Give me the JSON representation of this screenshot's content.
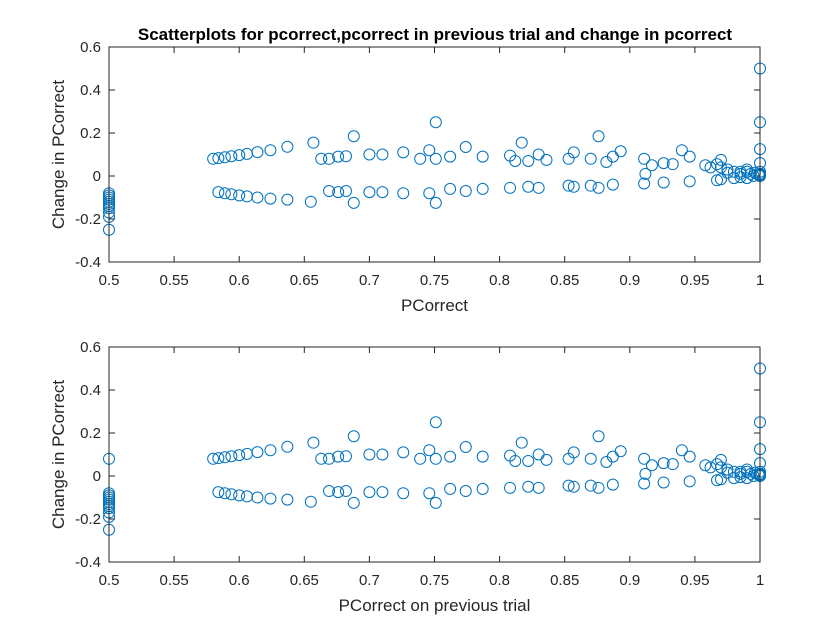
{
  "title": "Scatterplots for pcorrect,pcorrect in previous trial and change in pcorrect",
  "marker_color": "#0072BD",
  "chart_data": [
    {
      "type": "scatter",
      "xlabel": "PCorrect",
      "ylabel": "Change in PCorrect",
      "xlim": [
        0.5,
        1
      ],
      "ylim": [
        -0.4,
        0.6
      ],
      "xticks": [
        "0.5",
        "0.55",
        "0.6",
        "0.65",
        "0.7",
        "0.75",
        "0.8",
        "0.85",
        "0.9",
        "0.95",
        "1"
      ],
      "yticks": [
        "-0.4",
        "-0.2",
        "0",
        "0.2",
        "0.4",
        "0.6"
      ],
      "grid": false,
      "x": [
        0.5,
        0.5,
        0.5,
        0.5,
        0.5,
        0.5,
        0.5,
        0.5,
        0.5,
        0.5,
        0.5,
        0.58,
        0.584,
        0.589,
        0.594,
        0.6,
        0.606,
        0.614,
        0.624,
        0.637,
        0.584,
        0.589,
        0.594,
        0.6,
        0.606,
        0.614,
        0.624,
        0.637,
        0.657,
        0.663,
        0.669,
        0.676,
        0.682,
        0.688,
        0.7,
        0.71,
        0.726,
        0.739,
        0.746,
        0.751,
        0.762,
        0.774,
        0.787,
        0.808,
        0.812,
        0.817,
        0.822,
        0.83,
        0.836,
        0.853,
        0.857,
        0.87,
        0.876,
        0.882,
        0.887,
        0.893,
        0.911,
        0.917,
        0.926,
        0.933,
        0.94,
        0.946,
        0.958,
        0.962,
        0.967,
        0.97,
        0.975,
        0.985,
        0.99,
        1,
        1,
        1,
        1,
        0.655,
        0.669,
        0.676,
        0.682,
        0.688,
        0.7,
        0.71,
        0.726,
        0.746,
        0.751,
        0.762,
        0.774,
        0.787,
        0.808,
        0.822,
        0.83,
        0.853,
        0.857,
        0.87,
        0.876,
        0.887,
        0.911,
        0.926,
        0.946,
        0.967,
        0.97,
        0.98,
        0.985,
        0.99,
        0.995,
        1,
        1,
        0.97,
        0.975,
        0.98,
        0.985,
        0.99,
        0.993,
        0.996,
        0.999,
        1,
        1,
        1,
        0.912,
        0.751
      ],
      "y": [
        -0.08,
        -0.09,
        -0.1,
        -0.11,
        -0.12,
        -0.13,
        -0.14,
        -0.15,
        -0.17,
        -0.19,
        -0.25,
        0.08,
        0.083,
        0.087,
        0.092,
        0.097,
        0.103,
        0.111,
        0.12,
        0.136,
        -0.075,
        -0.08,
        -0.085,
        -0.09,
        -0.095,
        -0.1,
        -0.105,
        -0.11,
        0.155,
        0.08,
        0.08,
        0.09,
        0.092,
        0.185,
        0.1,
        0.1,
        0.11,
        0.08,
        0.12,
        0.25,
        0.09,
        0.135,
        0.09,
        0.095,
        0.07,
        0.155,
        0.07,
        0.1,
        0.075,
        0.08,
        0.11,
        0.08,
        0.185,
        0.065,
        0.09,
        0.115,
        0.08,
        0.05,
        0.06,
        0.055,
        0.12,
        0.09,
        0.05,
        0.04,
        0.055,
        0.075,
        0.03,
        0.02,
        0.03,
        0.5,
        0.25,
        0.125,
        0.06,
        -0.12,
        -0.07,
        -0.075,
        -0.07,
        -0.125,
        -0.075,
        -0.075,
        -0.08,
        -0.08,
        -0.125,
        -0.06,
        -0.07,
        -0.06,
        -0.055,
        -0.05,
        -0.055,
        -0.045,
        -0.05,
        -0.045,
        -0.055,
        -0.04,
        -0.035,
        -0.03,
        -0.025,
        -0.02,
        -0.015,
        -0.01,
        -0.005,
        -0.01,
        0,
        0,
        0.01,
        0.04,
        0.015,
        0.02,
        0.01,
        0.02,
        0.01,
        0.015,
        0.005,
        0.02,
        0.01,
        0.005,
        0.01,
        0.08
      ]
    },
    {
      "type": "scatter",
      "xlabel": "PCorrect on previous trial",
      "ylabel": "Change in PCorrect",
      "xlim": [
        0.5,
        1
      ],
      "ylim": [
        -0.4,
        0.6
      ],
      "xticks": [
        "0.5",
        "0.55",
        "0.6",
        "0.65",
        "0.7",
        "0.75",
        "0.8",
        "0.85",
        "0.9",
        "0.95",
        "1"
      ],
      "yticks": [
        "-0.4",
        "-0.2",
        "0",
        "0.2",
        "0.4",
        "0.6"
      ],
      "grid": false,
      "x": [
        0.5,
        0.5,
        0.5,
        0.5,
        0.5,
        0.5,
        0.5,
        0.5,
        0.5,
        0.5,
        0.5,
        0.5,
        0.58,
        0.584,
        0.589,
        0.594,
        0.6,
        0.606,
        0.614,
        0.624,
        0.637,
        0.584,
        0.589,
        0.594,
        0.6,
        0.606,
        0.614,
        0.624,
        0.637,
        0.657,
        0.663,
        0.669,
        0.676,
        0.682,
        0.688,
        0.7,
        0.71,
        0.726,
        0.739,
        0.746,
        0.751,
        0.762,
        0.774,
        0.787,
        0.808,
        0.812,
        0.817,
        0.822,
        0.83,
        0.836,
        0.853,
        0.857,
        0.87,
        0.876,
        0.882,
        0.887,
        0.893,
        0.911,
        0.917,
        0.926,
        0.933,
        0.94,
        0.946,
        0.958,
        0.962,
        0.967,
        0.97,
        0.975,
        0.985,
        0.99,
        1,
        1,
        1,
        1,
        0.655,
        0.669,
        0.676,
        0.682,
        0.688,
        0.7,
        0.71,
        0.726,
        0.746,
        0.751,
        0.762,
        0.774,
        0.787,
        0.808,
        0.822,
        0.83,
        0.853,
        0.857,
        0.87,
        0.876,
        0.887,
        0.911,
        0.926,
        0.946,
        0.967,
        0.97,
        0.98,
        0.985,
        0.99,
        0.995,
        1,
        1,
        0.97,
        0.975,
        0.98,
        0.985,
        0.99,
        0.993,
        0.996,
        0.999,
        1,
        1,
        1,
        0.912,
        0.751
      ],
      "y": [
        0.08,
        -0.08,
        -0.09,
        -0.1,
        -0.11,
        -0.12,
        -0.13,
        -0.14,
        -0.15,
        -0.17,
        -0.19,
        -0.25,
        0.08,
        0.083,
        0.087,
        0.092,
        0.097,
        0.103,
        0.111,
        0.12,
        0.136,
        -0.075,
        -0.08,
        -0.085,
        -0.09,
        -0.095,
        -0.1,
        -0.105,
        -0.11,
        0.155,
        0.08,
        0.08,
        0.09,
        0.092,
        0.185,
        0.1,
        0.1,
        0.11,
        0.08,
        0.12,
        0.25,
        0.09,
        0.135,
        0.09,
        0.095,
        0.07,
        0.155,
        0.07,
        0.1,
        0.075,
        0.08,
        0.11,
        0.08,
        0.185,
        0.065,
        0.09,
        0.115,
        0.08,
        0.05,
        0.06,
        0.055,
        0.12,
        0.09,
        0.05,
        0.04,
        0.055,
        0.075,
        0.03,
        0.02,
        0.03,
        0.5,
        0.25,
        0.125,
        0.06,
        -0.12,
        -0.07,
        -0.075,
        -0.07,
        -0.125,
        -0.075,
        -0.075,
        -0.08,
        -0.08,
        -0.125,
        -0.06,
        -0.07,
        -0.06,
        -0.055,
        -0.05,
        -0.055,
        -0.045,
        -0.05,
        -0.045,
        -0.055,
        -0.04,
        -0.035,
        -0.03,
        -0.025,
        -0.02,
        -0.015,
        -0.01,
        -0.005,
        -0.01,
        0,
        0,
        0.01,
        0.04,
        0.015,
        0.02,
        0.01,
        0.02,
        0.01,
        0.015,
        0.005,
        0.02,
        0.01,
        0.005,
        0.01,
        0.08
      ]
    }
  ]
}
